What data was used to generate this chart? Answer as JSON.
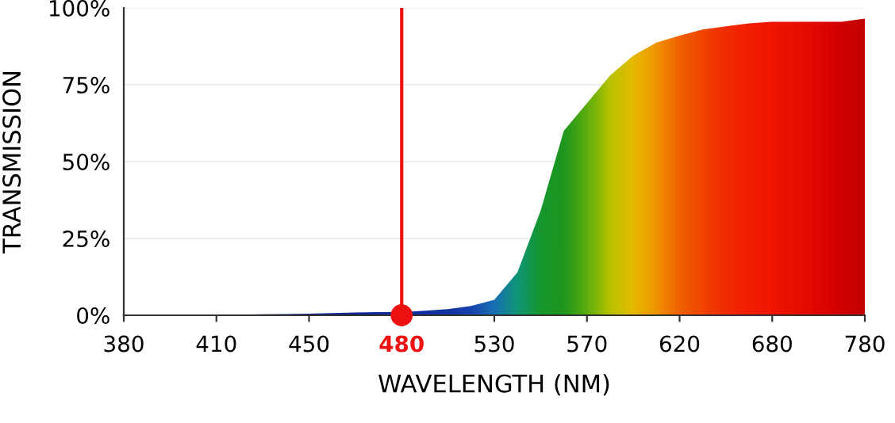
{
  "chart_data": {
    "type": "area",
    "xlabel": "WAVELENGTH (NM)",
    "ylabel": "TRANSMISSION",
    "categories": [
      "380",
      null,
      null,
      null,
      "410",
      null,
      null,
      null,
      "450",
      null,
      null,
      null,
      "480",
      null,
      null,
      null,
      "530",
      null,
      null,
      null,
      "570",
      null,
      null,
      null,
      "620",
      null,
      null,
      null,
      "680",
      null,
      null,
      null,
      "780"
    ],
    "series": [
      {
        "values": [
          0,
          0,
          0,
          0,
          0,
          0.2,
          0.3,
          0.4,
          0.5,
          0.7,
          0.9,
          1,
          1,
          1.5,
          2,
          3,
          5,
          14,
          34,
          60,
          69,
          78,
          84.5,
          88.7,
          91,
          93,
          94,
          95,
          95.5,
          95.5,
          95.5,
          95.5,
          96.5
        ],
        "colors": [
          "#0a1a80",
          "#0a1a80",
          "#0a1a85",
          "#0b1c88",
          "#0c1e8c",
          "#0d2090",
          "#0e2294",
          "#0f2498",
          "#10269c",
          "#1028a0",
          "#122aa2",
          "#132ca4",
          "#142ea8",
          "#1532ac",
          "#1638b0",
          "#1a48b8",
          "#1a78c0",
          "#10a080",
          "#18a030",
          "#20a020",
          "#60b810",
          "#c0d000",
          "#f5c800",
          "#ffa000",
          "#ff6a00",
          "#ff4a00",
          "#ff3000",
          "#ff2000",
          "#ff1800",
          "#f81000",
          "#f00800",
          "#e00000",
          "#d00000"
        ]
      },
      {
        "type": "scatter",
        "x": [
          "480"
        ],
        "values": [
          0
        ],
        "color": "#ee1111",
        "marker": "circle"
      }
    ],
    "ylim": [
      0,
      100
    ],
    "yticks": [
      {
        "value": 0,
        "label": "0%"
      },
      {
        "value": 25,
        "label": "25%"
      },
      {
        "value": 50,
        "label": "50%"
      },
      {
        "value": 75,
        "label": "75%"
      },
      {
        "value": 100,
        "label": "100%"
      }
    ],
    "grid": "y",
    "ref_lines": [
      {
        "axis": "x",
        "value": "480",
        "color": "#ee1111"
      }
    ]
  }
}
